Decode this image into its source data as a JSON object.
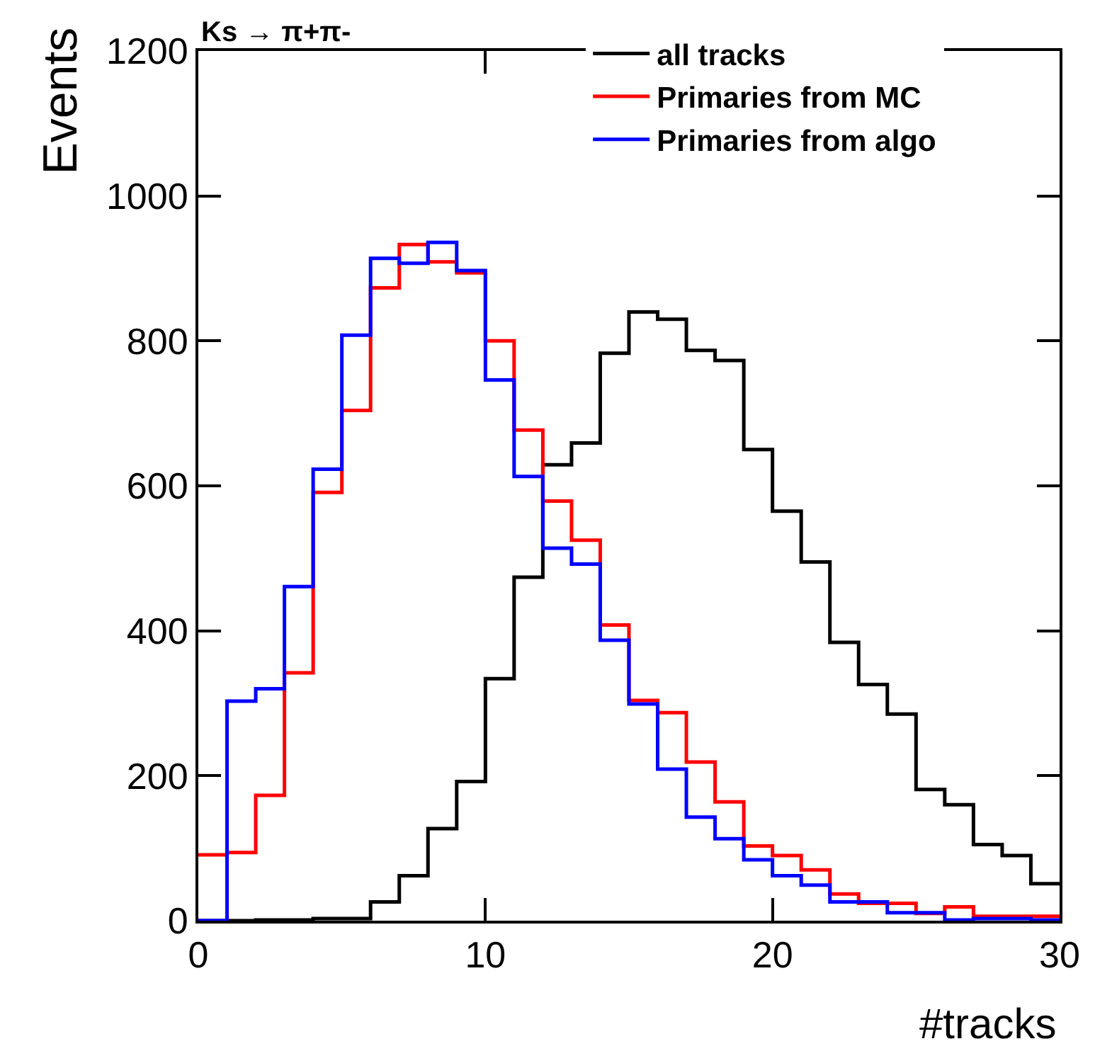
{
  "chart_data": {
    "type": "histogram",
    "title": "Ks → π+π-",
    "xlabel": "#tracks",
    "ylabel": "Events",
    "bins": [
      0,
      1,
      2,
      3,
      4,
      5,
      6,
      7,
      8,
      9,
      10,
      11,
      12,
      13,
      14,
      15,
      16,
      17,
      18,
      19,
      20,
      21,
      22,
      23,
      24,
      25,
      26,
      27,
      28,
      29,
      30
    ],
    "series": [
      {
        "name": "all tracks",
        "color": "#000000",
        "values": [
          0,
          0,
          1,
          1,
          3,
          3,
          26,
          62,
          127,
          192,
          334,
          474,
          629,
          659,
          783,
          840,
          830,
          787,
          773,
          650,
          565,
          495,
          384,
          326,
          285,
          181,
          160,
          105,
          90,
          51
        ]
      },
      {
        "name": "Primaries from MC",
        "color": "#ff0000",
        "values": [
          91,
          94,
          173,
          342,
          591,
          704,
          873,
          933,
          909,
          894,
          800,
          677,
          579,
          525,
          408,
          304,
          287,
          219,
          164,
          103,
          90,
          70,
          37,
          24,
          24,
          10,
          19,
          6,
          6,
          6
        ]
      },
      {
        "name": "Primaries from algo",
        "color": "#0000ff",
        "values": [
          0,
          303,
          320,
          461,
          623,
          808,
          914,
          907,
          936,
          897,
          746,
          613,
          514,
          492,
          387,
          299,
          209,
          143,
          113,
          84,
          62,
          49,
          26,
          26,
          11,
          11,
          1,
          3,
          3,
          1
        ]
      }
    ],
    "xlim": [
      0,
      30
    ],
    "xticks": [
      0,
      10,
      20,
      30
    ],
    "ylim": [
      0,
      1200
    ],
    "yticks": [
      0,
      200,
      400,
      600,
      800,
      1000,
      1200
    ],
    "grid": false,
    "legend": "top right"
  }
}
